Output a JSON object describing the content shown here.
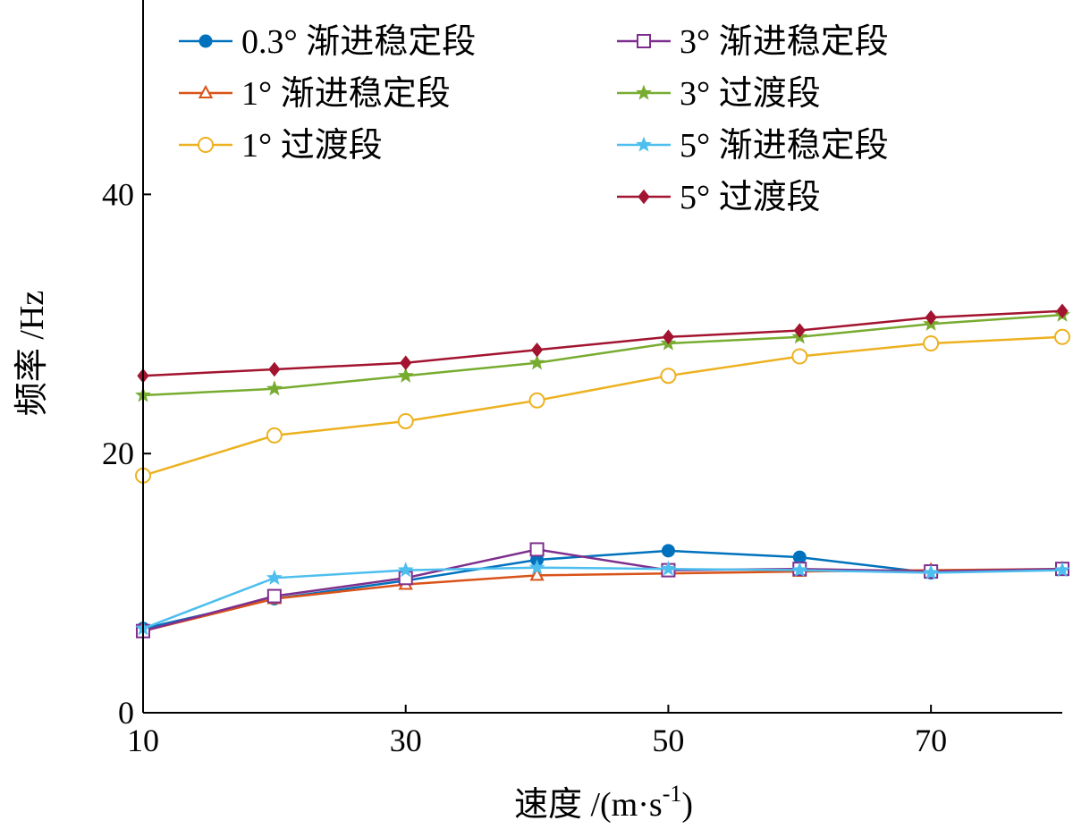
{
  "chart_data": {
    "type": "line",
    "xlabel": "速度 /(m·s",
    "xlabel_sup": "-1",
    "xlabel_close": ")",
    "ylabel": "频率 /Hz",
    "xlim": [
      10,
      80
    ],
    "ylim": [
      0,
      55
    ],
    "x_ticks": [
      10,
      30,
      50,
      70
    ],
    "y_ticks": [
      0,
      20,
      40
    ],
    "x_tick_labels": [
      "10",
      "30",
      "50",
      "70"
    ],
    "y_tick_labels": [
      "0",
      "20",
      "40"
    ],
    "grid": false,
    "legend_position": "top",
    "series": [
      {
        "name": "0.3° 渐进稳定段",
        "color": "#0072BD",
        "marker": "filled-circle",
        "x": [
          10,
          20,
          30,
          40,
          50,
          60,
          70
        ],
        "y": [
          6.5,
          8.8,
          10.2,
          11.8,
          12.5,
          12.0,
          10.8
        ]
      },
      {
        "name": "1° 渐进稳定段",
        "color": "#D95319",
        "marker": "open-triangle",
        "x": [
          10,
          20,
          30,
          40,
          50,
          60,
          70,
          80
        ],
        "y": [
          6.3,
          8.8,
          9.9,
          10.6,
          null,
          10.9,
          11.0,
          11.1
        ]
      },
      {
        "name": "1° 过渡段",
        "color": "#EDB120",
        "marker": "open-circle",
        "x": [
          10,
          20,
          30,
          40,
          50,
          60,
          70,
          80
        ],
        "y": [
          18.3,
          21.4,
          22.5,
          24.1,
          26.0,
          27.5,
          28.5,
          29.0
        ]
      },
      {
        "name": "3° 渐进稳定段",
        "color": "#7E2F8E",
        "marker": "open-square",
        "x": [
          10,
          20,
          30,
          40,
          50,
          60,
          70,
          80
        ],
        "y": [
          6.3,
          9.0,
          10.4,
          12.6,
          11.0,
          11.1,
          10.9,
          11.1
        ]
      },
      {
        "name": "3° 过渡段",
        "color": "#77AC30",
        "marker": "filled-star",
        "x": [
          10,
          20,
          30,
          40,
          50,
          60,
          70,
          80
        ],
        "y": [
          24.5,
          25.0,
          26.0,
          27.0,
          28.5,
          29.0,
          30.0,
          30.7
        ]
      },
      {
        "name": "5° 渐进稳定段",
        "color": "#4DBEEE",
        "marker": "filled-star",
        "x": [
          10,
          20,
          30,
          40,
          50,
          60,
          70,
          80
        ],
        "y": [
          6.5,
          10.4,
          11.0,
          11.2,
          11.1,
          11.0,
          10.8,
          11.0
        ]
      },
      {
        "name": "5° 过渡段",
        "color": "#A2142F",
        "marker": "filled-diamond",
        "x": [
          10,
          20,
          30,
          40,
          50,
          60,
          70,
          80
        ],
        "y": [
          26.0,
          26.5,
          27.0,
          28.0,
          29.0,
          29.5,
          30.5,
          31.0
        ]
      }
    ]
  }
}
